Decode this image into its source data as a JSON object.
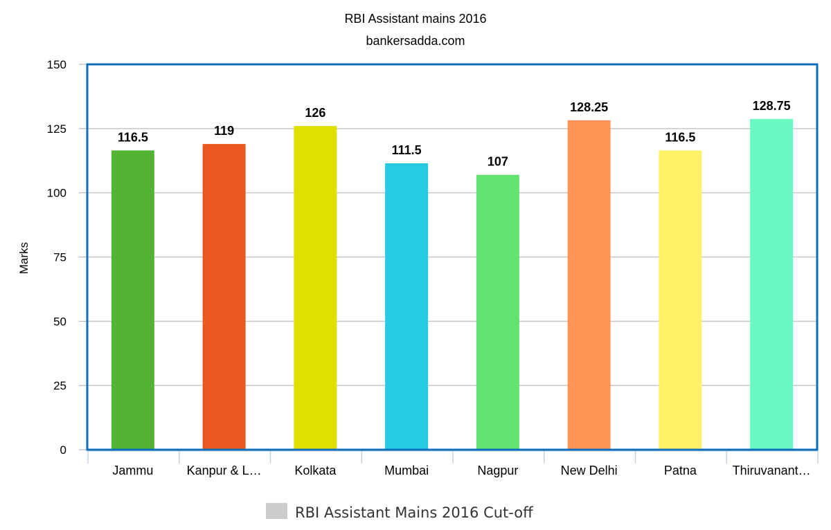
{
  "chart_data": {
    "type": "bar",
    "title": "RBI Assistant mains 2016",
    "subtitle": "bankersadda.com",
    "xlabel": "",
    "ylabel": "Marks",
    "ylim": [
      0,
      150
    ],
    "yticks": [
      0,
      25,
      50,
      75,
      100,
      125,
      150
    ],
    "grid": true,
    "legend_position": "bottom",
    "categories": [
      "Jammu",
      "Kanpur & L…",
      "Kolkata",
      "Mumbai",
      "Nagpur",
      "New Delhi",
      "Patna",
      "Thiruvanant…"
    ],
    "data_labels": [
      "116.5",
      "119",
      "126",
      "111.5",
      "107",
      "128.25",
      "116.5",
      "128.75"
    ],
    "series": [
      {
        "name": "RBI Assistant Mains 2016 Cut-off",
        "values": [
          116.5,
          119,
          126,
          111.5,
          107,
          128.25,
          116.5,
          128.75
        ],
        "colors": [
          "#52b335",
          "#eb581f",
          "#dfe000",
          "#26cbe3",
          "#64e26f",
          "#ff9557",
          "#fff266",
          "#6af9c3"
        ]
      }
    ],
    "legend_swatch_color": "#cccccc",
    "plot_border_color": "#0a6ebd"
  }
}
